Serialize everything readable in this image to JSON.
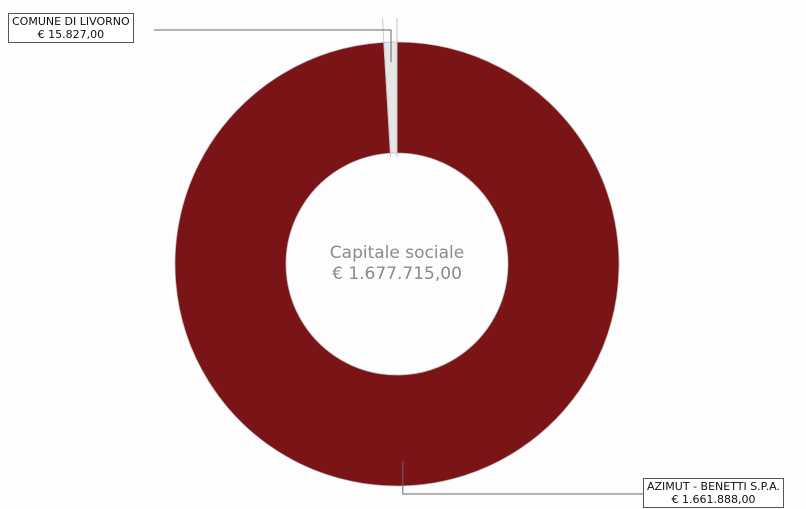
{
  "chart_data": {
    "type": "pie",
    "center_label": "Capitale sociale",
    "center_value": "€ 1.677.715,00",
    "total": 1677715.0,
    "slices": [
      {
        "name": "COMUNE DI LIVORNO",
        "value_label": "€ 15.827,00",
        "value": 15827.0,
        "color": "#e6e6e6"
      },
      {
        "name": "AZIMUT - BENETTI S.P.A.",
        "value_label": "€ 1.661.888,00",
        "value": 1661888.0,
        "color": "#7a1416"
      }
    ]
  }
}
